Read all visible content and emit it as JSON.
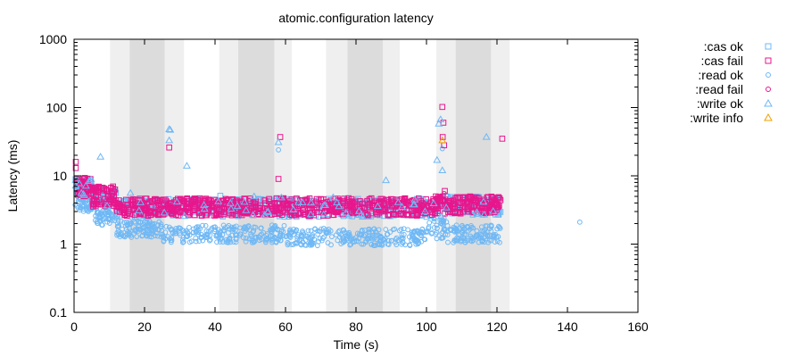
{
  "chart_data": {
    "type": "scatter",
    "title": "atomic.configuration latency",
    "xlabel": "Time (s)",
    "ylabel": "Latency (ms)",
    "xlim": [
      0,
      160
    ],
    "ylim": [
      0.1,
      1000
    ],
    "yscale": "log",
    "x_ticks": [
      "0",
      "20",
      "40",
      "60",
      "80",
      "100",
      "120",
      "140",
      "160"
    ],
    "y_ticks": [
      "0.1",
      "1",
      "10",
      "100",
      "1000"
    ],
    "grid": false,
    "legend_position": "right",
    "shaded_intervals": [
      {
        "start": 10.2,
        "end": 31.2,
        "shade": "light"
      },
      {
        "start": 15.8,
        "end": 25.7,
        "shade": "dark"
      },
      {
        "start": 41.2,
        "end": 61.8,
        "shade": "light"
      },
      {
        "start": 46.6,
        "end": 56.8,
        "shade": "dark"
      },
      {
        "start": 71.5,
        "end": 92.4,
        "shade": "light"
      },
      {
        "start": 77.6,
        "end": 87.6,
        "shade": "dark"
      },
      {
        "start": 102.8,
        "end": 123.6,
        "shade": "light"
      },
      {
        "start": 108.3,
        "end": 118.3,
        "shade": "dark"
      }
    ],
    "series": [
      {
        "name": ":cas ok",
        "marker": "square",
        "color": "#6fb8f5",
        "bands": [
          {
            "x0": 0.2,
            "x1": 5,
            "lo": 4.5,
            "hi": 9,
            "n": 40
          },
          {
            "x0": 5,
            "x1": 12,
            "lo": 3.5,
            "hi": 6.5,
            "n": 50
          },
          {
            "x0": 12,
            "x1": 102,
            "lo": 2.5,
            "hi": 4.6,
            "n": 420
          },
          {
            "x0": 102,
            "x1": 121,
            "lo": 2.7,
            "hi": 5,
            "n": 110
          }
        ],
        "points": [
          [
            41.5,
            5.1
          ],
          [
            104.5,
            4.8
          ]
        ]
      },
      {
        "name": ":cas fail",
        "marker": "square",
        "color": "#e8168c",
        "bands": [
          {
            "x0": 0.2,
            "x1": 5,
            "lo": 5,
            "hi": 9.5,
            "n": 50
          },
          {
            "x0": 5,
            "x1": 12,
            "lo": 3.5,
            "hi": 7,
            "n": 70
          },
          {
            "x0": 12,
            "x1": 102,
            "lo": 2.6,
            "hi": 4.7,
            "n": 700
          },
          {
            "x0": 102,
            "x1": 121,
            "lo": 2.8,
            "hi": 5,
            "n": 170
          }
        ],
        "points": [
          [
            0.5,
            16
          ],
          [
            0.5,
            13
          ],
          [
            10.5,
            6.7
          ],
          [
            27,
            26
          ],
          [
            58,
            9
          ],
          [
            58.5,
            37
          ],
          [
            104.5,
            102
          ],
          [
            104.8,
            60
          ],
          [
            104.6,
            37
          ],
          [
            105,
            28
          ],
          [
            105.2,
            6
          ],
          [
            121.5,
            35
          ],
          [
            121,
            4.4
          ]
        ]
      },
      {
        "name": ":read ok",
        "marker": "circle",
        "color": "#6fb8f5",
        "bands": [
          {
            "x0": 0.2,
            "x1": 6,
            "lo": 3,
            "hi": 4.5,
            "n": 40
          },
          {
            "x0": 6,
            "x1": 12,
            "lo": 1.9,
            "hi": 3.1,
            "n": 50
          },
          {
            "x0": 12,
            "x1": 25,
            "lo": 1.25,
            "hi": 2.2,
            "n": 110
          },
          {
            "x0": 25,
            "x1": 60,
            "lo": 1.05,
            "hi": 1.9,
            "n": 220
          },
          {
            "x0": 60,
            "x1": 100,
            "lo": 0.95,
            "hi": 1.7,
            "n": 260
          },
          {
            "x0": 100,
            "x1": 106,
            "lo": 1.2,
            "hi": 2.6,
            "n": 40
          },
          {
            "x0": 106,
            "x1": 121,
            "lo": 1.05,
            "hi": 1.9,
            "n": 110
          }
        ],
        "points": [
          [
            58,
            24
          ],
          [
            104.5,
            25
          ],
          [
            143.5,
            2.1
          ]
        ]
      },
      {
        "name": ":read fail",
        "marker": "circle",
        "color": "#e8168c",
        "bands": [
          {
            "x0": 0.5,
            "x1": 5,
            "lo": 5,
            "hi": 7.5,
            "n": 8
          }
        ],
        "points": [
          [
            105,
            5.5
          ]
        ]
      },
      {
        "name": ":write ok",
        "marker": "triangle",
        "color": "#6fb8f5",
        "bands": [
          {
            "x0": 0.2,
            "x1": 5,
            "lo": 5,
            "hi": 10,
            "n": 10
          },
          {
            "x0": 5,
            "x1": 121,
            "lo": 2.5,
            "hi": 5,
            "n": 50
          }
        ],
        "points": [
          [
            7.5,
            19
          ],
          [
            27,
            48
          ],
          [
            27.3,
            47
          ],
          [
            27,
            33
          ],
          [
            32,
            14
          ],
          [
            58,
            31
          ],
          [
            88.5,
            8.6
          ],
          [
            103,
            17
          ],
          [
            103.5,
            58
          ],
          [
            104,
            67
          ],
          [
            104.5,
            12
          ],
          [
            117,
            37
          ],
          [
            16,
            5.6
          ]
        ]
      },
      {
        "name": ":write info",
        "marker": "triangle",
        "color": "#f0a000",
        "bands": [],
        "points": [
          [
            104.5,
            33
          ]
        ]
      }
    ]
  }
}
